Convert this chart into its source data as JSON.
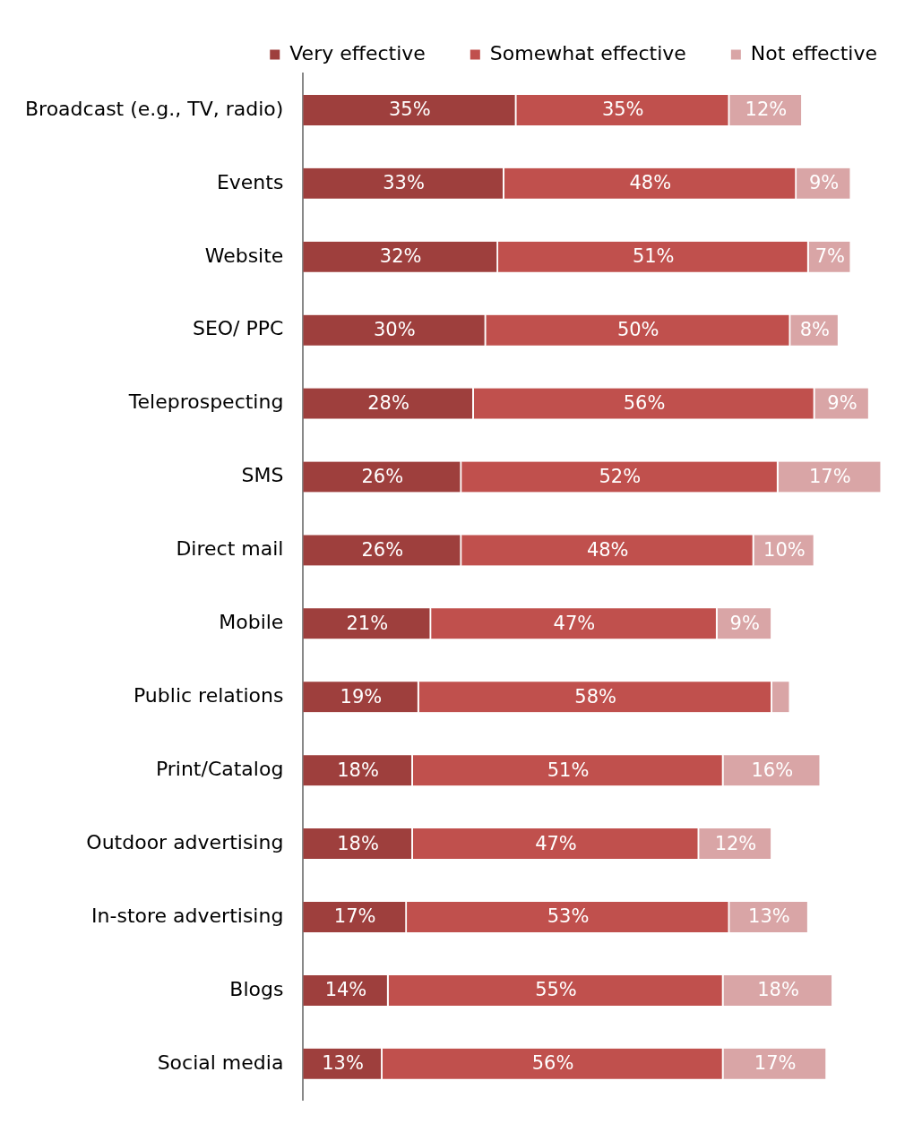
{
  "chart_data": {
    "type": "bar",
    "orientation": "horizontal",
    "stacked": true,
    "legend": "top right",
    "categories": [
      "Broadcast (e.g., TV, radio)",
      "Events",
      "Website",
      "SEO/ PPC",
      "Teleprospecting",
      "SMS",
      "Direct mail",
      "Mobile",
      "Public relations",
      "Print/Catalog",
      "Outdoor advertising",
      "In-store advertising",
      "Blogs",
      "Social media"
    ],
    "series": [
      {
        "name": "Very effective",
        "color": "#9e3f3d",
        "values": [
          35,
          33,
          32,
          30,
          28,
          26,
          26,
          21,
          19,
          18,
          18,
          17,
          14,
          13
        ],
        "value_labels": [
          "35%",
          "33%",
          "32%",
          "30%",
          "28%",
          "26%",
          "26%",
          "21%",
          "19%",
          "18%",
          "18%",
          "17%",
          "14%",
          "13%"
        ]
      },
      {
        "name": "Somewhat effective",
        "color": "#c0504d",
        "values": [
          35,
          48,
          51,
          50,
          56,
          52,
          48,
          47,
          58,
          51,
          47,
          53,
          55,
          56
        ],
        "value_labels": [
          "35%",
          "48%",
          "51%",
          "50%",
          "56%",
          "52%",
          "48%",
          "47%",
          "58%",
          "51%",
          "47%",
          "53%",
          "55%",
          "56%"
        ]
      },
      {
        "name": "Not effective",
        "color": "#d9a5a6",
        "values": [
          12,
          9,
          7,
          8,
          9,
          17,
          10,
          9,
          3,
          16,
          12,
          13,
          18,
          17
        ],
        "value_labels": [
          "12%",
          "9%",
          "7%",
          "8%",
          "9%",
          "17%",
          "10%",
          "9%",
          null,
          "16%",
          "12%",
          "13%",
          "18%",
          "17%"
        ]
      }
    ]
  }
}
